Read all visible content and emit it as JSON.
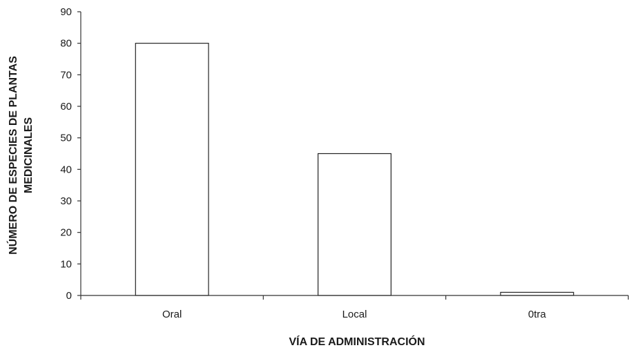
{
  "chart_data": {
    "type": "bar",
    "categories": [
      "Oral",
      "Local",
      "0tra"
    ],
    "values": [
      80,
      45,
      1
    ],
    "xlabel": "VÍA DE ADMINISTRACIÓN",
    "ylabel_lines": [
      "NÚMERO DE ESPECIES DE PLANTAS",
      "MEDICINALES"
    ],
    "ylim": [
      0,
      90
    ],
    "yticks": [
      0,
      10,
      20,
      30,
      40,
      50,
      60,
      70,
      80,
      90
    ],
    "grid": false,
    "legend": "none",
    "bar_fill": "#ffffff",
    "bar_stroke": "#222222"
  }
}
